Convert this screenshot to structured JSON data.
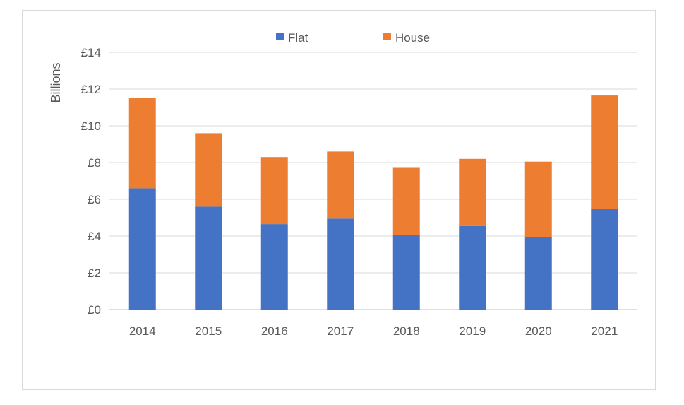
{
  "chart_data": {
    "type": "bar",
    "stacked": true,
    "categories": [
      "2014",
      "2015",
      "2016",
      "2017",
      "2018",
      "2019",
      "2020",
      "2021"
    ],
    "series": [
      {
        "name": "Flat",
        "color": "#4472c4",
        "values": [
          6.6,
          5.6,
          4.65,
          4.95,
          4.05,
          4.55,
          3.95,
          5.5
        ]
      },
      {
        "name": "House",
        "color": "#ed7d31",
        "values": [
          4.9,
          4.0,
          3.65,
          3.65,
          3.7,
          3.65,
          4.1,
          6.15
        ]
      }
    ],
    "ylabel": "Billions",
    "ylim": [
      0,
      14
    ],
    "yticks": [
      0,
      2,
      4,
      6,
      8,
      10,
      12,
      14
    ],
    "ytick_labels": [
      "£0",
      "£2",
      "£4",
      "£6",
      "£8",
      "£10",
      "£12",
      "£14"
    ],
    "grid": true,
    "legend_position": "top-center"
  }
}
